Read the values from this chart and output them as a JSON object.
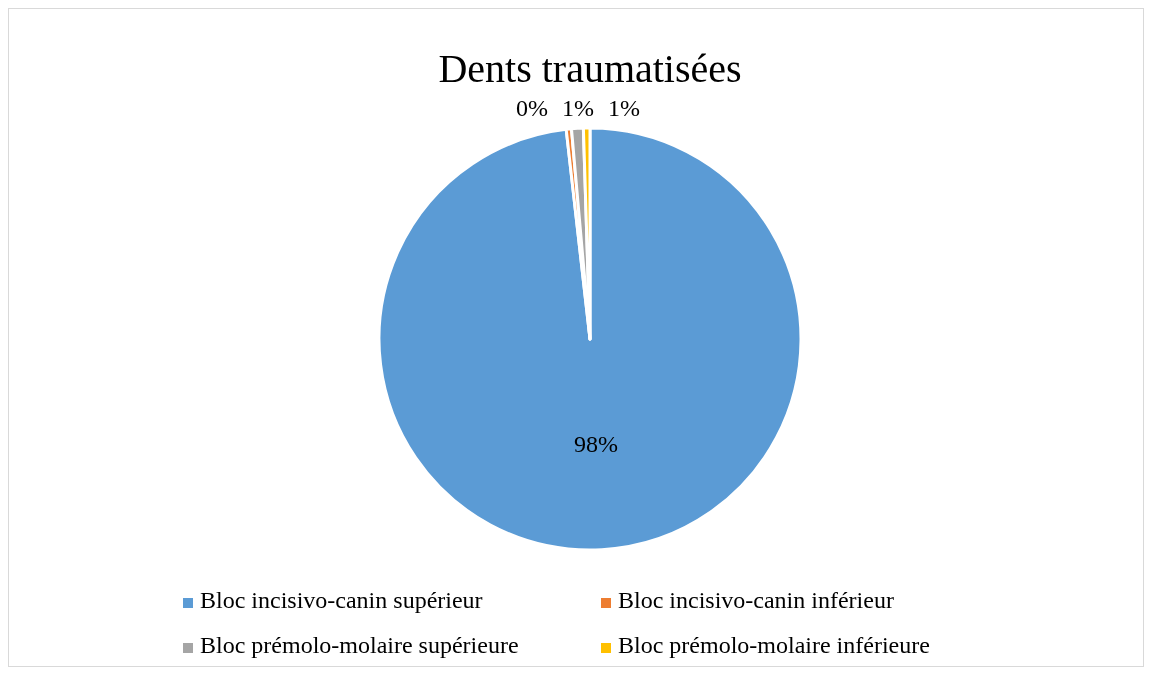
{
  "chart_data": {
    "type": "pie",
    "title": "Dents traumatisées",
    "categories": [
      "Bloc incisivo-canin supérieur",
      "Bloc incisivo-canin inférieur",
      "Bloc prémolo-molaire supérieure",
      "Bloc prémolo-molaire inférieure"
    ],
    "values": [
      98.2,
      0.4,
      0.9,
      0.5
    ],
    "colors": [
      "#5b9bd5",
      "#ed7d31",
      "#a5a5a5",
      "#ffc000"
    ],
    "value_labels": [
      "98%",
      "0%",
      "1%",
      "1%"
    ],
    "legend": "bottom"
  }
}
